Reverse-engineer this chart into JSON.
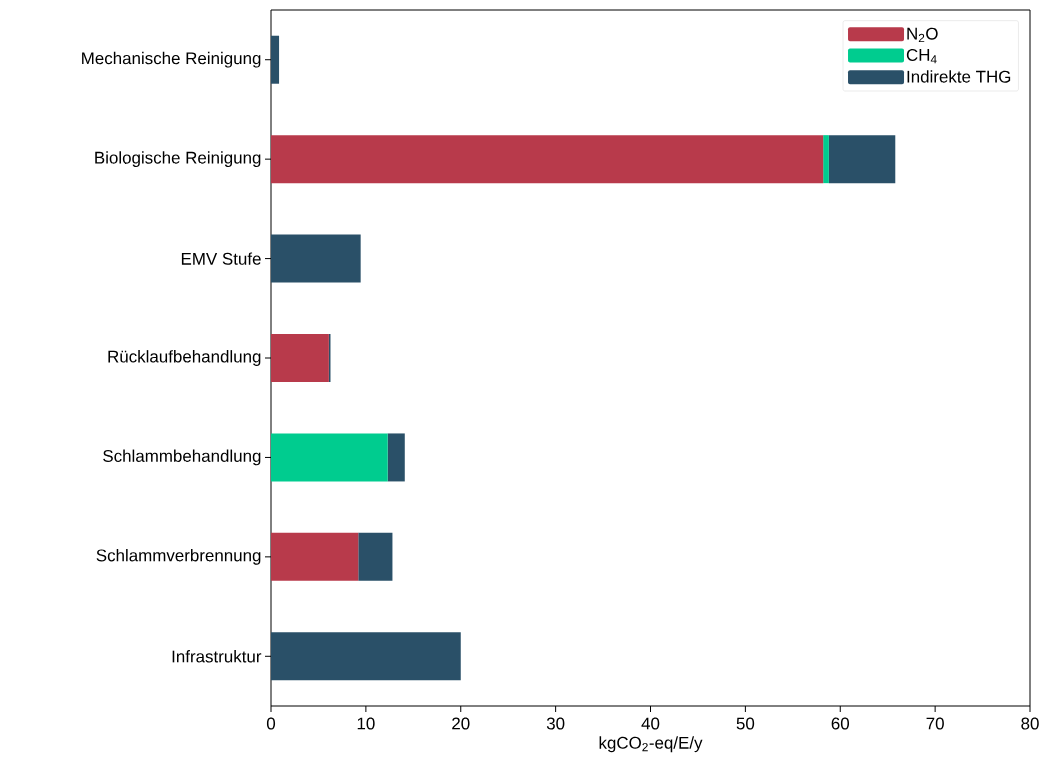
{
  "chart_data": {
    "type": "bar",
    "orientation": "horizontal",
    "stacked": true,
    "categories": [
      "Mechanische Reinigung",
      "Biologische Reinigung",
      "EMV Stufe",
      "Rücklaufbehandlung",
      "Schlammbehandlung",
      "Schlammverbrennung",
      "Infrastruktur"
    ],
    "series": [
      {
        "name": "N$_{2}$O",
        "color": "#b83a4b",
        "values": [
          0,
          58.2,
          0,
          6.1,
          0,
          9.2,
          0
        ]
      },
      {
        "name": "CH$_{4}$",
        "color": "#00cc8f",
        "values": [
          0,
          0.6,
          0,
          0,
          12.3,
          0,
          0
        ]
      },
      {
        "name": "Indirekte THG",
        "color": "#2a5068",
        "values": [
          0.85,
          7.0,
          9.45,
          0.17,
          1.8,
          3.6,
          20.0
        ]
      }
    ],
    "xlabel": "kgCO$_{2}$-eq/E/y",
    "xlim": [
      0,
      80
    ],
    "xticks": [
      0,
      10,
      20,
      30,
      40,
      50,
      60,
      70,
      80
    ],
    "legend": "top right",
    "grid": false
  }
}
